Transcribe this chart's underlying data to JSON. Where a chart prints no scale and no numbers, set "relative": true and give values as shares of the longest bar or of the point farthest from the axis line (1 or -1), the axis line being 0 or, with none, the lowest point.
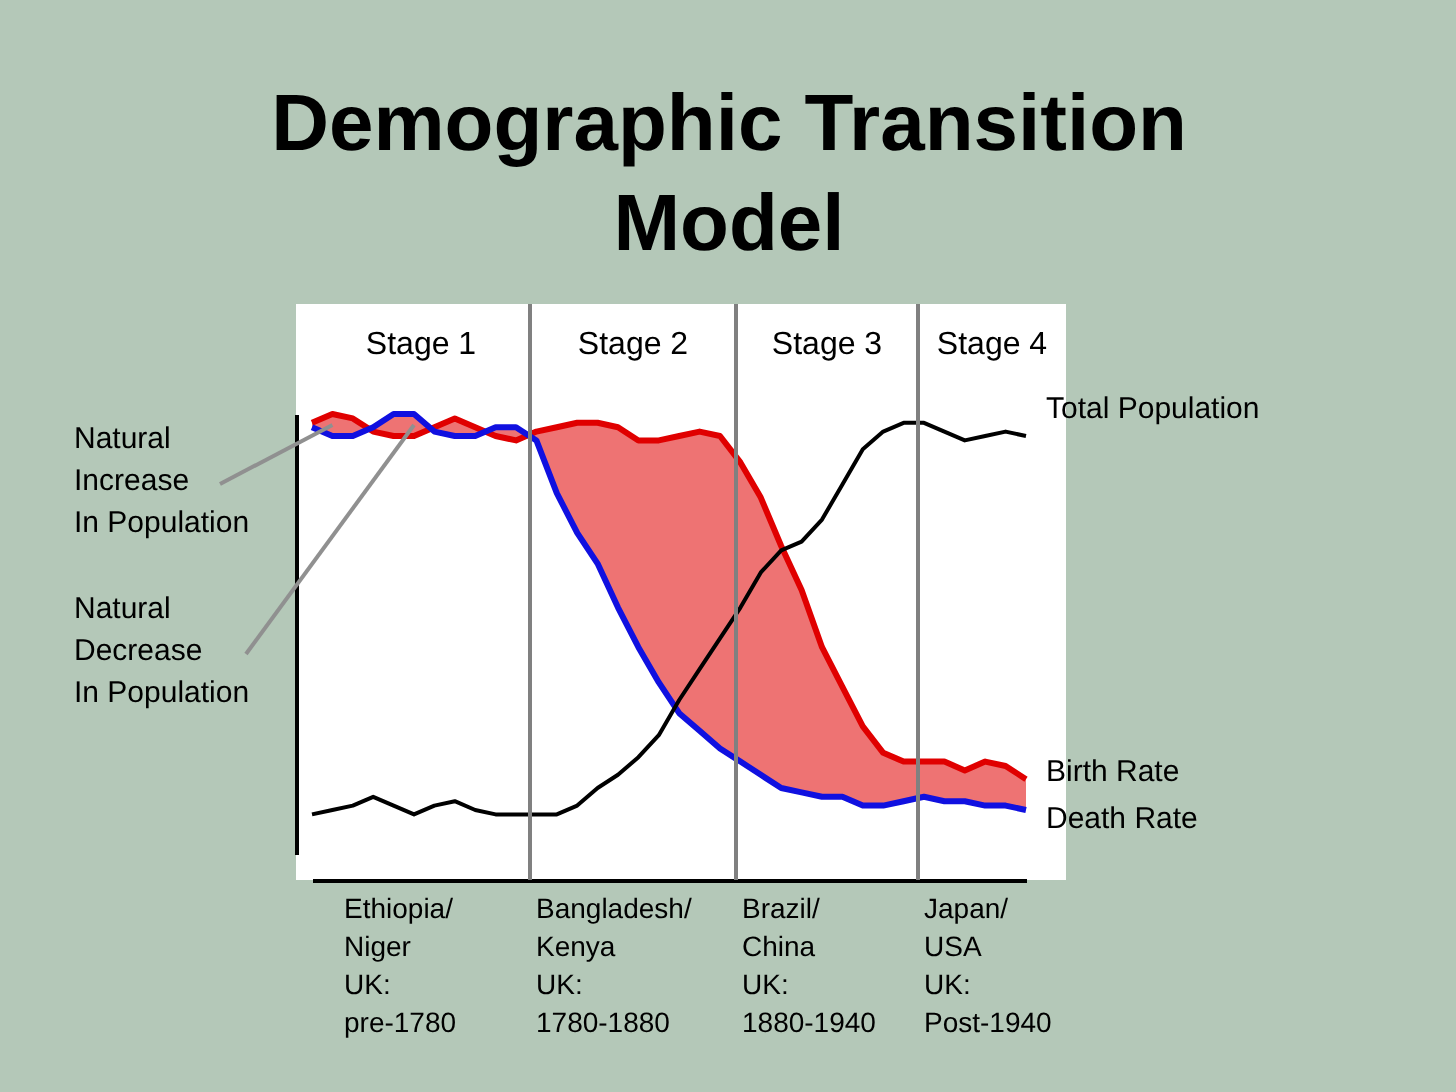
{
  "chart_data": {
    "type": "line",
    "title": "Demographic Transition Model",
    "relative": true,
    "tick_labels": false,
    "grid": false,
    "categories": [
      null,
      null,
      null,
      null,
      null,
      null,
      null,
      null,
      null,
      null,
      null,
      null,
      null,
      null,
      null,
      null,
      null,
      null,
      null,
      null,
      null,
      null,
      null,
      null,
      null,
      null,
      null,
      null,
      null,
      null,
      null,
      null,
      null,
      null,
      null,
      null
    ],
    "series": [
      {
        "name": "Birth Rate",
        "color": "#e00000",
        "values": [
          0.98,
          1.0,
          0.99,
          0.96,
          0.95,
          0.95,
          0.97,
          0.99,
          0.97,
          0.95,
          0.94,
          0.96,
          0.97,
          0.98,
          0.98,
          0.97,
          0.94,
          0.94,
          0.95,
          0.96,
          0.95,
          0.89,
          0.81,
          0.7,
          0.6,
          0.47,
          0.38,
          0.29,
          0.23,
          0.21,
          0.21,
          0.21,
          0.19,
          0.21,
          0.2,
          0.17
        ],
        "lower": [
          0.97,
          0.95,
          0.95,
          0.97,
          1.0,
          1.0,
          0.96,
          0.95,
          0.95,
          0.97,
          0.97,
          0.94,
          0.82,
          0.73,
          0.66,
          0.56,
          0.47,
          0.39,
          0.32,
          0.28,
          0.24,
          0.21,
          0.18,
          0.15,
          0.14,
          0.13,
          0.13,
          0.11,
          0.11,
          0.12,
          0.13,
          0.12,
          0.12,
          0.11,
          0.11,
          0.1
        ],
        "upper": [
          0.98,
          1.0,
          0.99,
          0.96,
          0.95,
          0.95,
          0.97,
          0.99,
          0.97,
          0.95,
          0.94,
          0.96,
          0.97,
          0.98,
          0.98,
          0.97,
          0.94,
          0.94,
          0.95,
          0.96,
          0.95,
          0.89,
          0.81,
          0.7,
          0.6,
          0.47,
          0.38,
          0.29,
          0.23,
          0.21,
          0.21,
          0.21,
          0.19,
          0.21,
          0.2,
          0.17
        ]
      },
      {
        "name": "Death Rate",
        "color": "#1010e0",
        "values": [
          0.97,
          0.95,
          0.95,
          0.97,
          1.0,
          1.0,
          0.96,
          0.95,
          0.95,
          0.97,
          0.97,
          0.94,
          0.82,
          0.73,
          0.66,
          0.56,
          0.47,
          0.39,
          0.32,
          0.28,
          0.24,
          0.21,
          0.18,
          0.15,
          0.14,
          0.13,
          0.13,
          0.11,
          0.11,
          0.12,
          0.13,
          0.12,
          0.12,
          0.11,
          0.11,
          0.1
        ]
      },
      {
        "name": "Total Population",
        "color": "#000000",
        "values": [
          0.09,
          0.1,
          0.11,
          0.13,
          0.11,
          0.09,
          0.11,
          0.12,
          0.1,
          0.09,
          0.09,
          0.09,
          0.09,
          0.11,
          0.15,
          0.18,
          0.22,
          0.27,
          0.35,
          0.42,
          0.49,
          0.56,
          0.64,
          0.69,
          0.71,
          0.76,
          0.84,
          0.92,
          0.96,
          0.98,
          0.98,
          0.96,
          0.94,
          0.95,
          0.96,
          0.95
        ]
      }
    ],
    "annotations": [
      "Stage 1",
      "Stage 2",
      "Stage 3",
      "Stage 4",
      "Ethiopia/\nNiger\nUK:\npre-1780",
      "Bangladesh/\nKenya\nUK:\n1780-1880",
      "Brazil/\nChina\nUK:\n1880-1940",
      "Japan/\nUSA\nUK:\nPost-1940",
      "Natural\nIncrease\nIn Population",
      "Natural\nDecrease\nIn Population"
    ]
  }
}
